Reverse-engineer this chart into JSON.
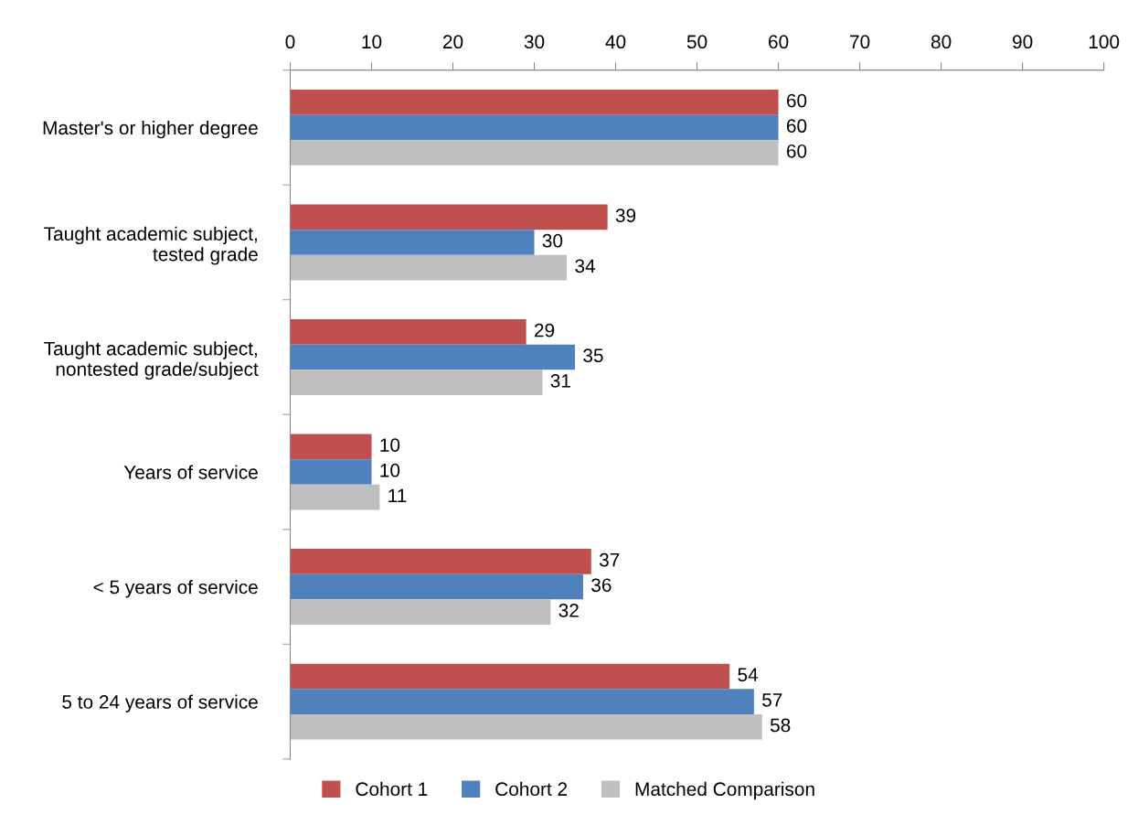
{
  "chart_data": {
    "type": "bar",
    "orientation": "horizontal",
    "categories": [
      "Master's or higher degree",
      "Taught academic subject,\ntested grade",
      "Taught academic subject,\nnontested grade/subject",
      "Years of service",
      "< 5 years of service",
      "5 to 24 years of service"
    ],
    "series": [
      {
        "name": "Cohort 1",
        "color": "#c0504d",
        "values": [
          60,
          39,
          29,
          10,
          37,
          54
        ]
      },
      {
        "name": "Cohort 2",
        "color": "#4f81bd",
        "values": [
          60,
          30,
          35,
          10,
          36,
          57
        ]
      },
      {
        "name": "Matched Comparison",
        "color": "#bfbfbf",
        "values": [
          60,
          34,
          31,
          11,
          32,
          58
        ]
      }
    ],
    "xlim": [
      0,
      100
    ],
    "xticks": [
      0,
      10,
      20,
      30,
      40,
      50,
      60,
      70,
      80,
      90,
      100
    ],
    "data_labels": true,
    "legend": "bottom",
    "grid": false
  }
}
